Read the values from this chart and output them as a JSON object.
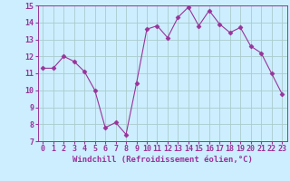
{
  "x": [
    0,
    1,
    2,
    3,
    4,
    5,
    6,
    7,
    8,
    9,
    10,
    11,
    12,
    13,
    14,
    15,
    16,
    17,
    18,
    19,
    20,
    21,
    22,
    23
  ],
  "y": [
    11.3,
    11.3,
    12.0,
    11.7,
    11.1,
    10.0,
    7.8,
    8.1,
    7.4,
    10.4,
    13.6,
    13.8,
    13.1,
    14.3,
    14.9,
    13.8,
    14.7,
    13.9,
    13.4,
    13.7,
    12.6,
    12.2,
    11.0,
    9.8
  ],
  "line_color": "#993399",
  "marker": "D",
  "marker_size": 2.5,
  "background_color": "#cceeff",
  "grid_color": "#aacccc",
  "xlabel": "Windchill (Refroidissement éolien,°C)",
  "xlabel_color": "#993399",
  "xlabel_fontsize": 6.5,
  "tick_color": "#993399",
  "tick_fontsize": 6,
  "ylim": [
    7,
    15
  ],
  "xlim": [
    -0.5,
    23.5
  ],
  "yticks": [
    7,
    8,
    9,
    10,
    11,
    12,
    13,
    14,
    15
  ],
  "xticks": [
    0,
    1,
    2,
    3,
    4,
    5,
    6,
    7,
    8,
    9,
    10,
    11,
    12,
    13,
    14,
    15,
    16,
    17,
    18,
    19,
    20,
    21,
    22,
    23
  ]
}
